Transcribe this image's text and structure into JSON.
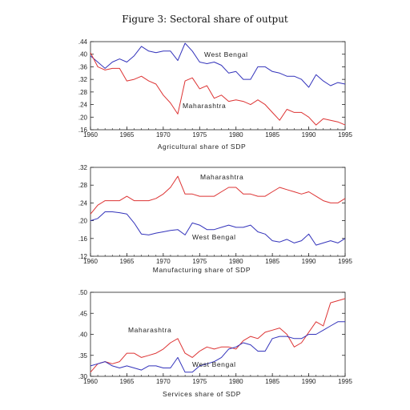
{
  "figure_title": "Figure 3:  Sectoral share of output",
  "colors": {
    "maharashtra": "#dd3333",
    "west_bengal": "#3333bb",
    "frame": "#222222"
  },
  "chart_data": [
    {
      "type": "line",
      "xlabel": "Agricultural share of SDP",
      "ylabel": "",
      "xlim": [
        1960,
        1995
      ],
      "ylim": [
        0.16,
        0.44
      ],
      "xticks": [
        "1960",
        "1965",
        "1970",
        "1975",
        "1980",
        "1985",
        "1990",
        "1995"
      ],
      "yticks": [
        ".16",
        ".20",
        ".24",
        ".28",
        ".32",
        ".36",
        ".40",
        ".44"
      ],
      "x": [
        1960,
        1961,
        1962,
        1963,
        1964,
        1965,
        1966,
        1967,
        1968,
        1969,
        1970,
        1971,
        1972,
        1973,
        1974,
        1975,
        1976,
        1977,
        1978,
        1979,
        1980,
        1981,
        1982,
        1983,
        1984,
        1985,
        1986,
        1987,
        1988,
        1989,
        1990,
        1991,
        1992,
        1993,
        1994,
        1995
      ],
      "series": [
        {
          "name": "West Bengal",
          "color_key": "west_bengal",
          "values": [
            0.395,
            0.375,
            0.355,
            0.375,
            0.385,
            0.375,
            0.395,
            0.425,
            0.41,
            0.405,
            0.41,
            0.41,
            0.38,
            0.435,
            0.41,
            0.375,
            0.37,
            0.375,
            0.365,
            0.34,
            0.345,
            0.32,
            0.32,
            0.36,
            0.36,
            0.345,
            0.34,
            0.33,
            0.33,
            0.32,
            0.295,
            0.335,
            0.315,
            0.3,
            0.31,
            0.305
          ]
        },
        {
          "name": "Maharashtra",
          "color_key": "maharashtra",
          "values": [
            0.405,
            0.36,
            0.35,
            0.355,
            0.355,
            0.315,
            0.32,
            0.33,
            0.315,
            0.305,
            0.27,
            0.245,
            0.21,
            0.315,
            0.325,
            0.29,
            0.3,
            0.26,
            0.27,
            0.25,
            0.255,
            0.25,
            0.24,
            0.255,
            0.24,
            0.215,
            0.19,
            0.225,
            0.215,
            0.215,
            0.2,
            0.175,
            0.195,
            0.19,
            0.185,
            0.175
          ]
        }
      ]
    },
    {
      "type": "line",
      "xlabel": "Manufacturing share of SDP",
      "ylabel": "",
      "xlim": [
        1960,
        1995
      ],
      "ylim": [
        0.12,
        0.32
      ],
      "xticks": [
        "1960",
        "1965",
        "1970",
        "1975",
        "1980",
        "1985",
        "1990",
        "1995"
      ],
      "yticks": [
        ".12",
        ".16",
        ".20",
        ".24",
        ".28",
        ".32"
      ],
      "x": [
        1960,
        1961,
        1962,
        1963,
        1964,
        1965,
        1966,
        1967,
        1968,
        1969,
        1970,
        1971,
        1972,
        1973,
        1974,
        1975,
        1976,
        1977,
        1978,
        1979,
        1980,
        1981,
        1982,
        1983,
        1984,
        1985,
        1986,
        1987,
        1988,
        1989,
        1990,
        1991,
        1992,
        1993,
        1994,
        1995
      ],
      "series": [
        {
          "name": "Maharashtra",
          "color_key": "maharashtra",
          "values": [
            0.215,
            0.235,
            0.245,
            0.245,
            0.245,
            0.255,
            0.245,
            0.245,
            0.245,
            0.25,
            0.26,
            0.275,
            0.3,
            0.26,
            0.26,
            0.255,
            0.255,
            0.255,
            0.265,
            0.275,
            0.275,
            0.26,
            0.26,
            0.255,
            0.255,
            0.265,
            0.275,
            0.27,
            0.265,
            0.26,
            0.265,
            0.255,
            0.245,
            0.24,
            0.24,
            0.25
          ]
        },
        {
          "name": "West Bengal",
          "color_key": "west_bengal",
          "values": [
            0.2,
            0.205,
            0.22,
            0.22,
            0.218,
            0.215,
            0.195,
            0.17,
            0.168,
            0.172,
            0.175,
            0.178,
            0.18,
            0.168,
            0.195,
            0.19,
            0.18,
            0.18,
            0.185,
            0.19,
            0.185,
            0.185,
            0.19,
            0.175,
            0.17,
            0.155,
            0.152,
            0.158,
            0.15,
            0.155,
            0.17,
            0.145,
            0.15,
            0.155,
            0.15,
            0.16
          ]
        }
      ]
    },
    {
      "type": "line",
      "xlabel": "Services share of SDP",
      "ylabel": "",
      "xlim": [
        1960,
        1995
      ],
      "ylim": [
        0.3,
        0.5
      ],
      "xticks": [
        "1960",
        "1965",
        "1970",
        "1975",
        "1980",
        "1985",
        "1990",
        "1995"
      ],
      "yticks": [
        ".30",
        ".35",
        ".40",
        ".45",
        ".50"
      ],
      "x": [
        1960,
        1961,
        1962,
        1963,
        1964,
        1965,
        1966,
        1967,
        1968,
        1969,
        1970,
        1971,
        1972,
        1973,
        1974,
        1975,
        1976,
        1977,
        1978,
        1979,
        1980,
        1981,
        1982,
        1983,
        1984,
        1985,
        1986,
        1987,
        1988,
        1989,
        1990,
        1991,
        1992,
        1993,
        1994,
        1995
      ],
      "series": [
        {
          "name": "Maharashtra",
          "color_key": "maharashtra",
          "values": [
            0.31,
            0.33,
            0.335,
            0.33,
            0.335,
            0.355,
            0.355,
            0.345,
            0.35,
            0.355,
            0.365,
            0.38,
            0.39,
            0.355,
            0.345,
            0.36,
            0.37,
            0.365,
            0.37,
            0.37,
            0.365,
            0.385,
            0.395,
            0.39,
            0.405,
            0.41,
            0.415,
            0.4,
            0.37,
            0.38,
            0.405,
            0.43,
            0.42,
            0.475,
            0.48,
            0.485
          ]
        },
        {
          "name": "West Bengal",
          "color_key": "west_bengal",
          "values": [
            0.325,
            0.33,
            0.335,
            0.325,
            0.32,
            0.325,
            0.32,
            0.315,
            0.325,
            0.325,
            0.32,
            0.32,
            0.345,
            0.31,
            0.31,
            0.325,
            0.33,
            0.335,
            0.345,
            0.365,
            0.37,
            0.38,
            0.375,
            0.36,
            0.36,
            0.39,
            0.395,
            0.395,
            0.39,
            0.39,
            0.4,
            0.4,
            0.41,
            0.42,
            0.43,
            0.43
          ]
        }
      ]
    }
  ]
}
